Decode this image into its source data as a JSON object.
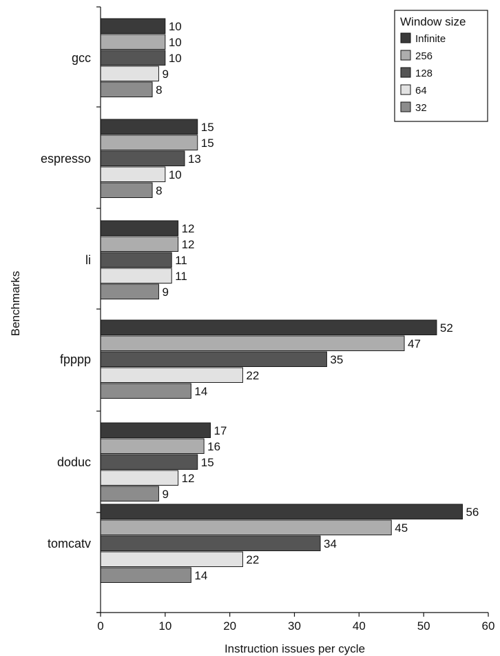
{
  "chart_data": {
    "type": "bar",
    "orientation": "horizontal",
    "xlabel": "Instruction issues per cycle",
    "ylabel": "Benchmarks",
    "xlim": [
      0,
      60
    ],
    "xticks": [
      0,
      10,
      20,
      30,
      40,
      50,
      60
    ],
    "grid": false,
    "legend_title": "Window size",
    "legend_position": "top-right",
    "categories": [
      "gcc",
      "espresso",
      "li",
      "fpppp",
      "doduc",
      "tomcatv"
    ],
    "series": [
      {
        "name": "Infinite",
        "color": "#3a3a3a",
        "values": [
          10,
          15,
          12,
          52,
          17,
          56
        ]
      },
      {
        "name": "256",
        "color": "#adadad",
        "values": [
          10,
          15,
          12,
          47,
          16,
          45
        ]
      },
      {
        "name": "128",
        "color": "#555555",
        "values": [
          10,
          13,
          11,
          35,
          15,
          34
        ]
      },
      {
        "name": "64",
        "color": "#e2e2e2",
        "values": [
          9,
          10,
          11,
          22,
          12,
          22
        ]
      },
      {
        "name": "32",
        "color": "#8c8c8c",
        "values": [
          8,
          8,
          9,
          14,
          9,
          14
        ]
      }
    ]
  }
}
